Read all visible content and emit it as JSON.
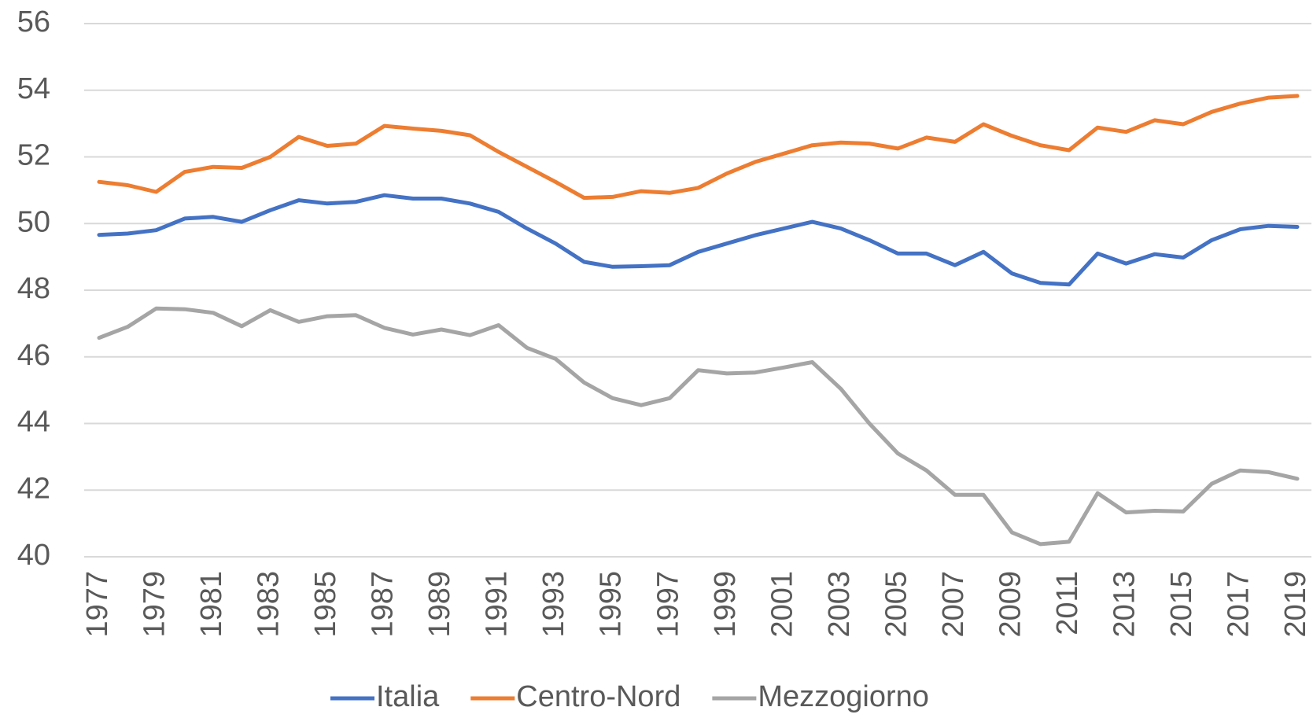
{
  "chart_data": {
    "type": "line",
    "x": [
      1977,
      1978,
      1979,
      1980,
      1981,
      1982,
      1983,
      1984,
      1985,
      1986,
      1987,
      1988,
      1989,
      1990,
      1991,
      1992,
      1993,
      1994,
      1995,
      1996,
      1997,
      1998,
      1999,
      2000,
      2001,
      2002,
      2003,
      2004,
      2005,
      2006,
      2007,
      2008,
      2009,
      2010,
      2011,
      2012,
      2013,
      2014,
      2015,
      2016,
      2017,
      2018,
      2019
    ],
    "xlim": [
      1977,
      2019
    ],
    "xticks": [
      1977,
      1979,
      1981,
      1983,
      1985,
      1987,
      1989,
      1991,
      1993,
      1995,
      1997,
      1999,
      2001,
      2003,
      2005,
      2007,
      2009,
      2011,
      2013,
      2015,
      2017,
      2019
    ],
    "ylim": [
      40,
      56
    ],
    "yticks": [
      40,
      42,
      44,
      46,
      48,
      50,
      52,
      54,
      56
    ],
    "grid": true,
    "legend": "bottom",
    "series": [
      {
        "name": "Italia",
        "color": "#4472c4",
        "values": [
          49.66,
          49.7,
          49.8,
          50.15,
          50.2,
          50.05,
          50.4,
          50.7,
          50.6,
          50.65,
          50.85,
          50.75,
          50.75,
          50.6,
          50.35,
          49.85,
          49.4,
          48.85,
          48.7,
          48.72,
          48.75,
          49.15,
          49.4,
          49.65,
          49.85,
          50.05,
          49.85,
          49.5,
          49.1,
          49.1,
          48.75,
          49.15,
          48.5,
          48.22,
          48.17,
          49.1,
          48.8,
          49.08,
          48.98,
          49.5,
          49.83,
          49.93,
          49.9
        ]
      },
      {
        "name": "Centro-Nord",
        "color": "#ed7d31",
        "values": [
          51.25,
          51.15,
          50.95,
          51.55,
          51.7,
          51.67,
          52.0,
          52.6,
          52.33,
          52.4,
          52.93,
          52.85,
          52.78,
          52.65,
          52.15,
          51.7,
          51.25,
          50.77,
          50.8,
          50.97,
          50.92,
          51.07,
          51.5,
          51.85,
          52.1,
          52.35,
          52.43,
          52.4,
          52.25,
          52.58,
          52.45,
          52.98,
          52.63,
          52.35,
          52.2,
          52.88,
          52.75,
          53.1,
          52.98,
          53.35,
          53.6,
          53.78,
          53.83
        ]
      },
      {
        "name": "Mezzogiorno",
        "color": "#a5a5a5",
        "values": [
          46.57,
          46.9,
          47.45,
          47.43,
          47.32,
          46.92,
          47.4,
          47.05,
          47.22,
          47.25,
          46.87,
          46.67,
          46.82,
          46.65,
          46.95,
          46.27,
          45.94,
          45.23,
          44.76,
          44.55,
          44.76,
          45.6,
          45.5,
          45.53,
          45.68,
          45.84,
          45.04,
          44.0,
          43.1,
          42.59,
          41.86,
          41.86,
          40.73,
          40.38,
          40.45,
          41.91,
          41.33,
          41.38,
          41.36,
          42.19,
          42.59,
          42.54,
          42.34
        ]
      }
    ]
  }
}
